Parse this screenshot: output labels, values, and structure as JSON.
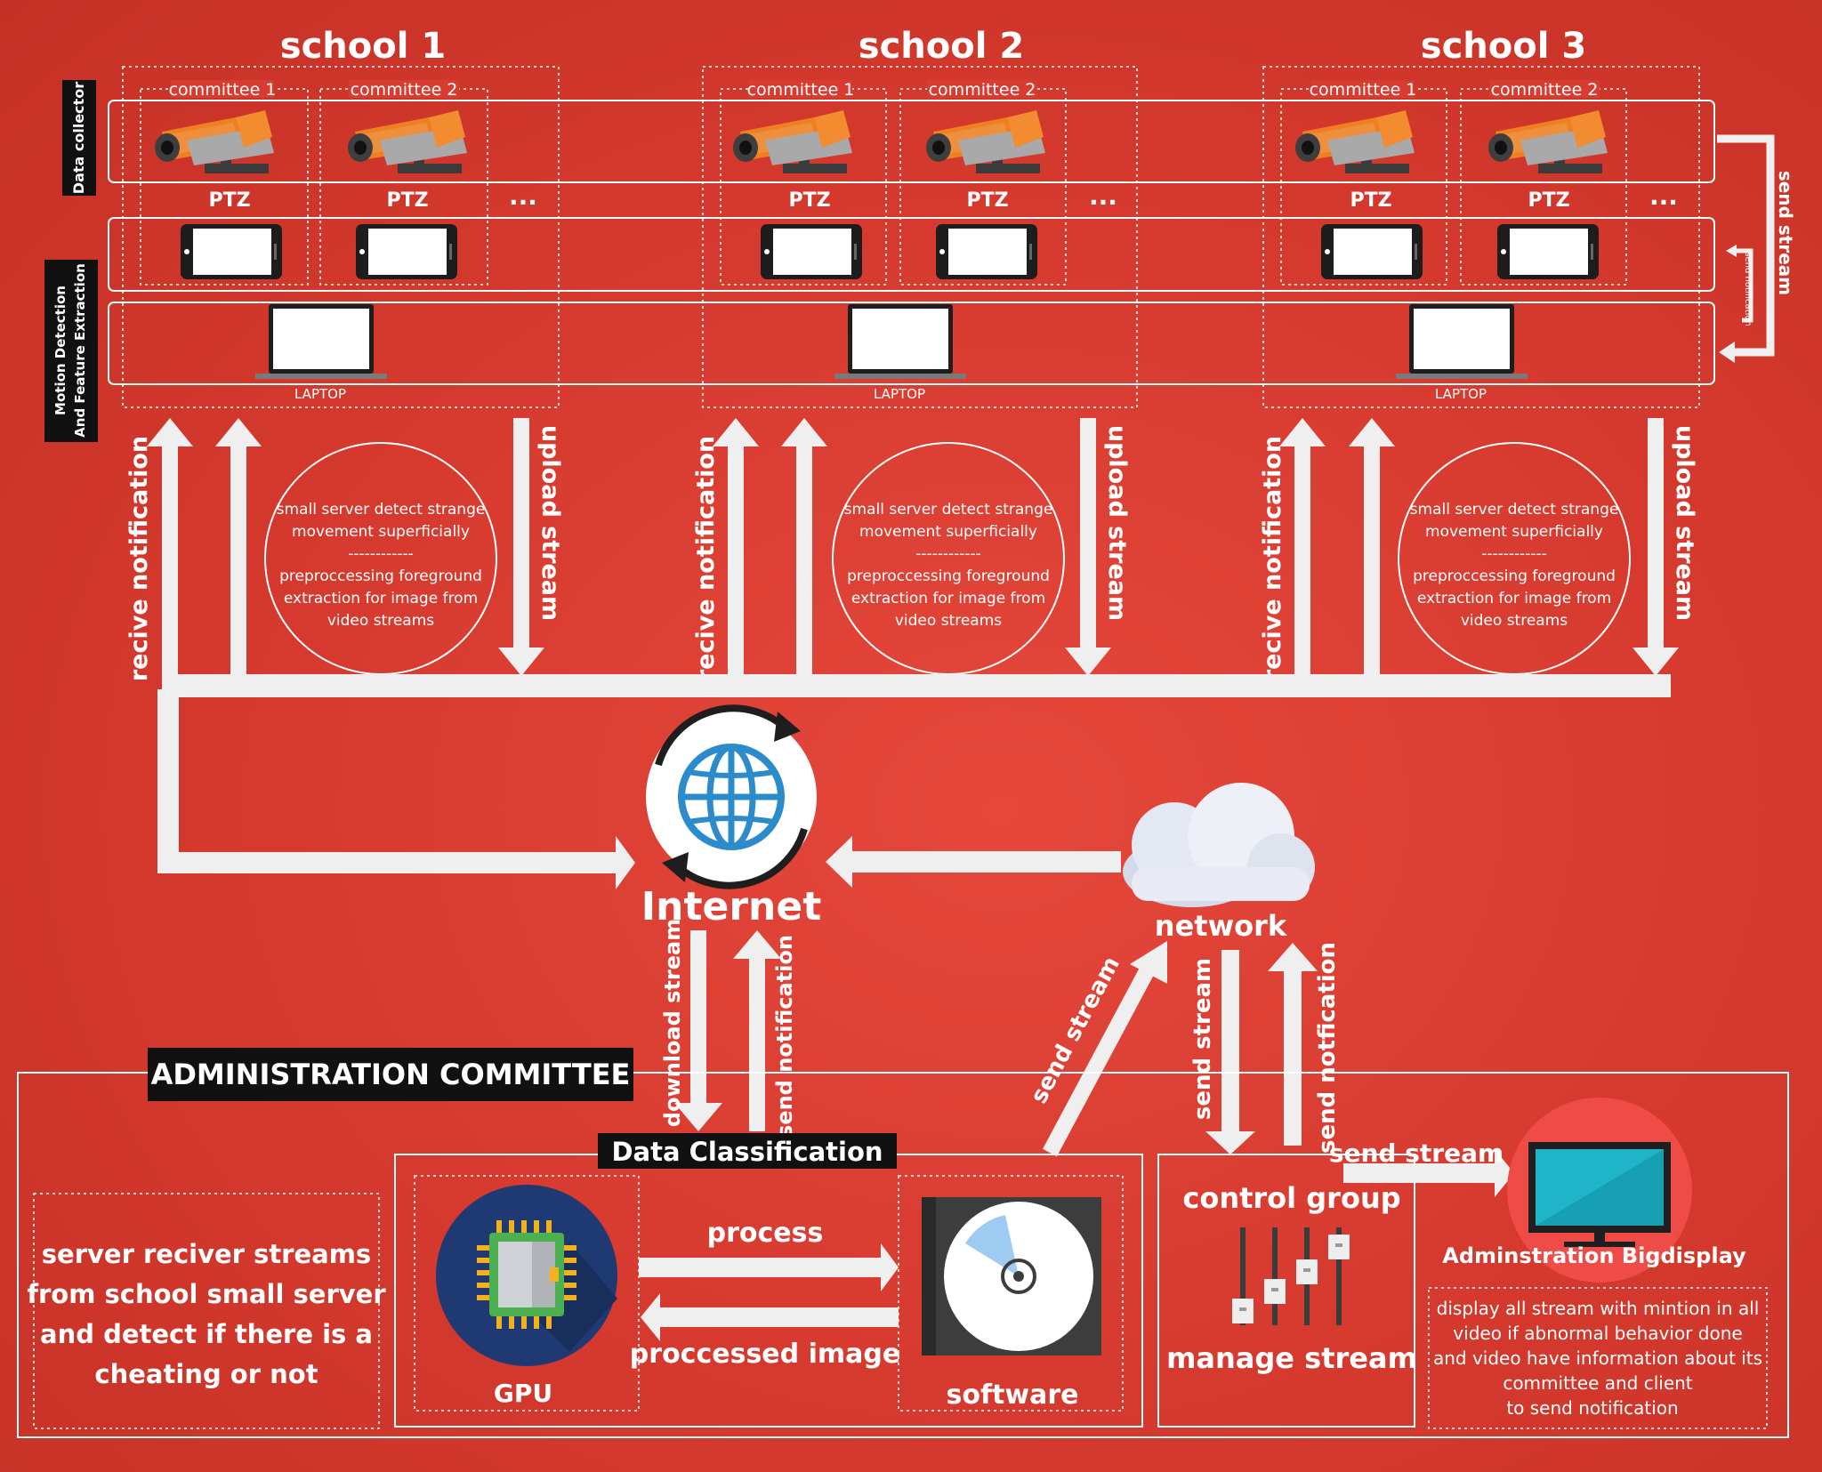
{
  "side_labels": {
    "data_collector": "Data collector",
    "motion_line1": "Motion Detection",
    "motion_line2": "And Feature Extraction"
  },
  "schools": [
    {
      "title": "school 1",
      "committees": [
        "committee 1",
        "committee 2"
      ],
      "device": "PTZ",
      "more": "...",
      "laptop": "LAPTOP",
      "arrows": {
        "receive": "recive notification",
        "upload": "upload stream"
      },
      "server_text": [
        "small server detect strange",
        "movement superficially",
        "------------",
        "preproccessing foreground",
        "extraction for image from",
        "video streams"
      ]
    },
    {
      "title": "school 2",
      "committees": [
        "committee 1",
        "committee 2"
      ],
      "device": "PTZ",
      "more": "...",
      "laptop": "LAPTOP",
      "arrows": {
        "receive": "recive notification",
        "upload": "upload stream"
      },
      "server_text": [
        "small server detect strange",
        "movement superficially",
        "------------",
        "preproccessing foreground",
        "extraction for image from",
        "video streams"
      ]
    },
    {
      "title": "school 3",
      "committees": [
        "committee 1",
        "committee 2"
      ],
      "device": "PTZ",
      "more": "...",
      "laptop": "LAPTOP",
      "arrows": {
        "receive": "recive notification",
        "upload": "upload stream"
      },
      "server_text": [
        "small server detect strange",
        "movement superficially",
        "------------",
        "preproccessing foreground",
        "extraction for image from",
        "video streams"
      ]
    }
  ],
  "right_side": {
    "send_stream": "send stream",
    "send_notification": "send notification"
  },
  "internet": {
    "label": "Internet"
  },
  "network": {
    "label": "network"
  },
  "links": {
    "download_stream": "download stream",
    "send_notification": "send notification",
    "send_stream_diag": "send stream",
    "send_stream_down": "send stream",
    "send_notfication": "send notfication",
    "send_stream_right": "send stream",
    "process": "process",
    "processed_image": "proccessed image"
  },
  "admin": {
    "title": "ADMINISTRATION COMMITTEE",
    "server_desc": [
      "server reciver streams",
      "from school small server",
      "and detect if there is a",
      "cheating or not"
    ],
    "data_classification": "Data Classification",
    "gpu": "GPU",
    "software": "software",
    "control_group": "control group",
    "manage_stream": "manage stream",
    "bigdisplay": "Adminstration Bigdisplay",
    "display_desc": [
      "display all stream with mintion in all",
      "video if abnormal behavior done",
      "and video have information about its",
      "committee and client",
      "to send notification"
    ]
  },
  "colors": {
    "background": "#d83c30",
    "arrow": "#efefef",
    "camera_orange": "#f07f22",
    "globe_blue": "#2c8ccb",
    "gpu_navy": "#1f3a73",
    "monitor_teal": "#17a0b3",
    "display_circle": "#ef4c48"
  },
  "icons": [
    "ptz-camera-icon",
    "tablet-icon",
    "laptop-icon",
    "globe-sync-icon",
    "cloud-icon",
    "gpu-chip-icon",
    "disc-software-icon",
    "sliders-icon",
    "monitor-icon"
  ]
}
